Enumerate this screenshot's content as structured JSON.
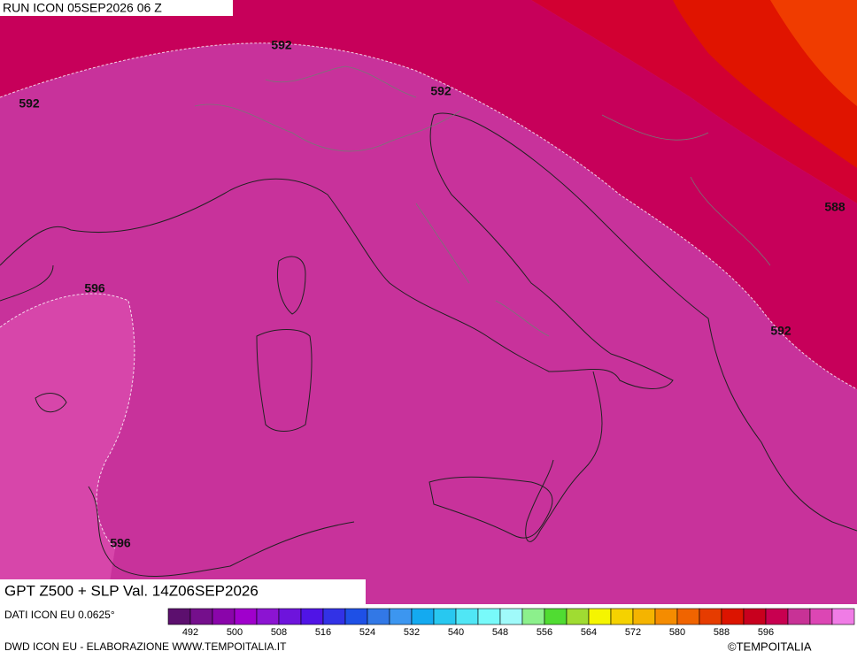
{
  "header": {
    "run": "RUN ICON 05SEP2026 06 Z"
  },
  "map": {
    "title": "GPT Z500 + SLP Val. 14Z06SEP2026",
    "contour_labels": [
      592,
      592,
      592,
      592,
      596,
      596,
      588,
      592
    ]
  },
  "colorbar": {
    "ticks": [
      492,
      500,
      508,
      516,
      524,
      532,
      540,
      548,
      556,
      564,
      572,
      580,
      588,
      596
    ],
    "colors": [
      "#5c0f6e",
      "#750f8c",
      "#8a05aa",
      "#a000cc",
      "#8c14d2",
      "#6e14dc",
      "#5014e6",
      "#3232e6",
      "#1e50e6",
      "#3278e6",
      "#3c96f0",
      "#14aaf0",
      "#28c8f0",
      "#50e6f5",
      "#78fafa",
      "#a0fafa",
      "#8cf08c",
      "#50dc32",
      "#a0dc32",
      "#f5f500",
      "#f5d200",
      "#f5b400",
      "#f58c00",
      "#f06400",
      "#e63c00",
      "#dc1400",
      "#c8001e",
      "#c80050",
      "#c83296",
      "#dc46b4",
      "#f07ce6"
    ]
  },
  "footer": {
    "source": "DATI ICON EU 0.0625°",
    "credit": "DWD ICON EU - ELABORAZIONE WWW.TEMPOITALIA.IT",
    "copyright": "©TEMPOITALIA"
  }
}
